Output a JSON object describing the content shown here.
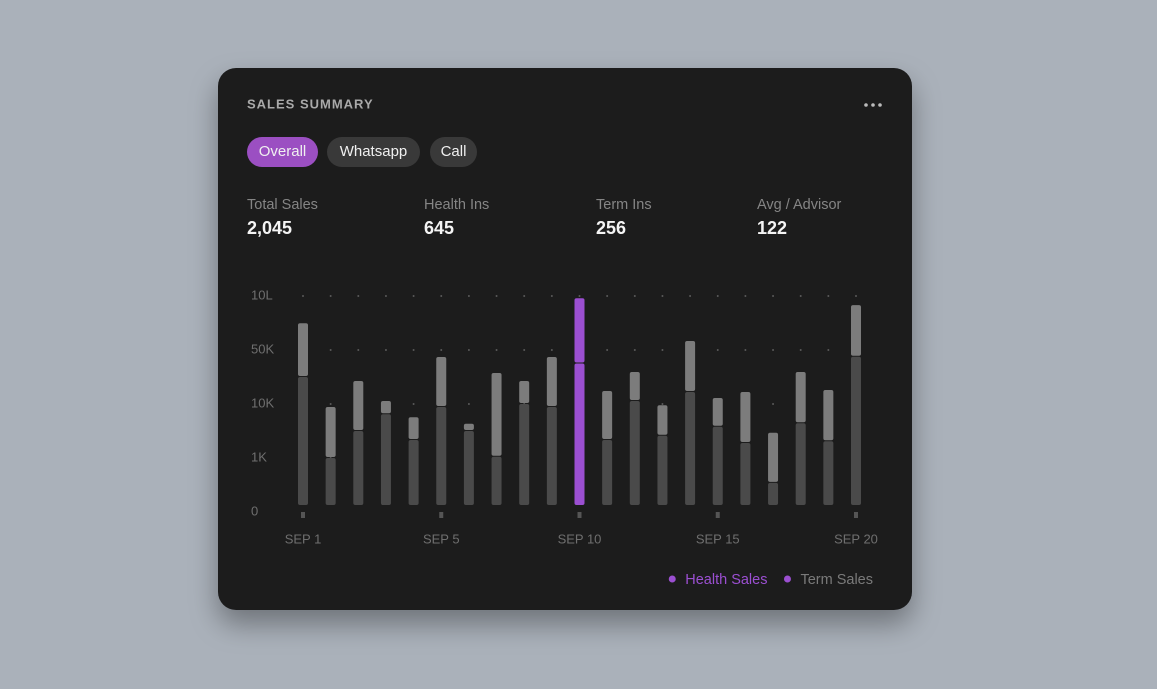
{
  "header": {
    "title": "SALES SUMMARY"
  },
  "tabs": [
    "Overall",
    "Whatsapp",
    "Call"
  ],
  "stats": [
    {
      "label": "Total Sales",
      "value": "2,045"
    },
    {
      "label": "Health Ins",
      "value": "645"
    },
    {
      "label": "Term Ins",
      "value": "256"
    },
    {
      "label": "Avg / Advisor",
      "value": "122"
    }
  ],
  "chart_data": {
    "type": "stacked-bar",
    "categories": [
      "SEP 1",
      null,
      null,
      null,
      null,
      "SEP 5",
      null,
      null,
      null,
      null,
      "SEP 10",
      null,
      null,
      null,
      null,
      "SEP 15",
      null,
      null,
      null,
      null,
      "SEP 20"
    ],
    "series": [
      {
        "name": "Health Sales",
        "color": "#4a4a4a",
        "values": [
          30000,
          1000,
          5500,
          8300,
          4000,
          9500,
          5500,
          1200,
          10000,
          9500,
          40000,
          4000,
          12200,
          4700,
          18900,
          6200,
          3500,
          540,
          6800,
          3800,
          45000
        ]
      },
      {
        "name": "Term Sales",
        "color": "#7c7c7c",
        "values": [
          490000,
          8500,
          21500,
          3900,
          3800,
          35300,
          1200,
          31800,
          17000,
          35300,
          920000,
          15600,
          21500,
          5100,
          189000,
          8200,
          15400,
          4660,
          26900,
          16600,
          795000
        ]
      }
    ],
    "highlight_index": 10,
    "highlight_color": "#9b4fd1",
    "ylim": [
      0,
      1000000
    ],
    "yticks": [
      0,
      {
        "value": 1000,
        "label": "1K"
      },
      {
        "value": 10000,
        "label": "10K"
      },
      {
        "value": 50000,
        "label": "50K"
      },
      {
        "value": 1000000,
        "label": "10L"
      }
    ],
    "grid": true
  }
}
